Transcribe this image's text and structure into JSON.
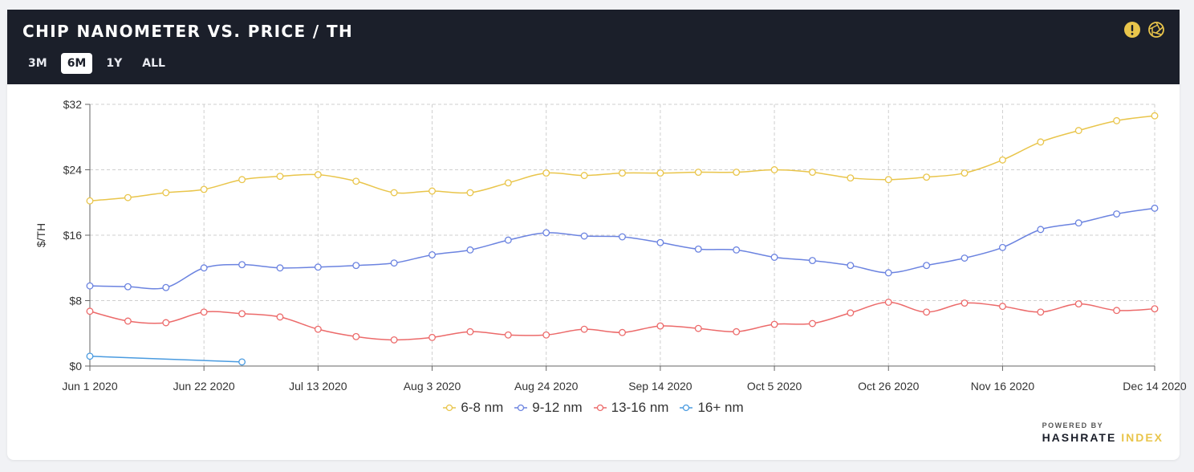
{
  "header": {
    "title": "CHIP NANOMETER VS. PRICE / TH",
    "tabs": [
      {
        "label": "3M",
        "active": false
      },
      {
        "label": "6M",
        "active": true
      },
      {
        "label": "1Y",
        "active": false
      },
      {
        "label": "ALL",
        "active": false
      }
    ],
    "icons": [
      "alert-icon",
      "aperture-icon"
    ]
  },
  "branding": {
    "powered_by": "POWERED BY",
    "brand_part1": "HASHRATE",
    "brand_part2": "INDEX"
  },
  "chart_data": {
    "type": "line",
    "title": "",
    "xlabel": "",
    "ylabel": "$/TH",
    "ylim": [
      0,
      32
    ],
    "yticks": [
      "$0",
      "$8",
      "$16",
      "$24",
      "$32"
    ],
    "ytick_values": [
      0,
      8,
      16,
      24,
      32
    ],
    "x_labels": [
      "Jun 1 2020",
      "Jun 22 2020",
      "Jul 13 2020",
      "Aug 3 2020",
      "Aug 24 2020",
      "Sep 14 2020",
      "Oct 5 2020",
      "Oct 26 2020",
      "Nov 16 2020",
      "Dec 14 2020"
    ],
    "x_label_index": [
      0,
      3,
      6,
      9,
      12,
      15,
      18,
      21,
      24,
      28
    ],
    "x": [
      "Jun 1 2020",
      "Jun 8 2020",
      "Jun 15 2020",
      "Jun 22 2020",
      "Jun 29 2020",
      "Jul 6 2020",
      "Jul 13 2020",
      "Jul 20 2020",
      "Jul 27 2020",
      "Aug 3 2020",
      "Aug 10 2020",
      "Aug 17 2020",
      "Aug 24 2020",
      "Aug 31 2020",
      "Sep 7 2020",
      "Sep 14 2020",
      "Sep 21 2020",
      "Sep 28 2020",
      "Oct 5 2020",
      "Oct 12 2020",
      "Oct 19 2020",
      "Oct 26 2020",
      "Nov 2 2020",
      "Nov 9 2020",
      "Nov 16 2020",
      "Nov 23 2020",
      "Nov 30 2020",
      "Dec 7 2020",
      "Dec 14 2020"
    ],
    "grid": true,
    "legend_position": "bottom-center",
    "series": [
      {
        "name": "6-8 nm",
        "color": "#e9c54b",
        "values": [
          20.2,
          20.6,
          21.2,
          21.6,
          22.8,
          23.2,
          23.4,
          22.6,
          21.2,
          21.4,
          21.2,
          22.4,
          23.6,
          23.3,
          23.6,
          23.6,
          23.7,
          23.7,
          24.0,
          23.7,
          23.0,
          22.8,
          23.1,
          23.6,
          25.2,
          27.4,
          28.8,
          30.0,
          30.6
        ]
      },
      {
        "name": "9-12 nm",
        "color": "#6b83e0",
        "values": [
          9.8,
          9.7,
          9.6,
          12.0,
          12.4,
          12.0,
          12.1,
          12.3,
          12.6,
          13.6,
          14.2,
          15.4,
          16.3,
          15.9,
          15.8,
          15.1,
          14.3,
          14.2,
          13.3,
          12.9,
          12.3,
          11.4,
          12.3,
          13.2,
          14.5,
          16.7,
          17.5,
          18.6,
          19.3
        ]
      },
      {
        "name": "13-16 nm",
        "color": "#ec6a6a",
        "values": [
          6.7,
          5.5,
          5.3,
          6.6,
          6.4,
          6.0,
          4.5,
          3.6,
          3.2,
          3.5,
          4.2,
          3.8,
          3.8,
          4.5,
          4.1,
          4.9,
          4.6,
          4.2,
          5.1,
          5.2,
          6.5,
          7.8,
          6.6,
          7.7,
          7.3,
          6.6,
          7.6,
          6.8,
          7.0
        ]
      },
      {
        "name": "16+ nm",
        "color": "#4a9be0",
        "values": [
          1.2,
          null,
          null,
          null,
          0.5,
          null,
          null,
          null,
          null,
          null,
          null,
          null,
          null,
          null,
          null,
          null,
          null,
          null,
          null,
          null,
          null,
          null,
          null,
          null,
          null,
          null,
          null,
          null,
          null
        ]
      }
    ]
  }
}
